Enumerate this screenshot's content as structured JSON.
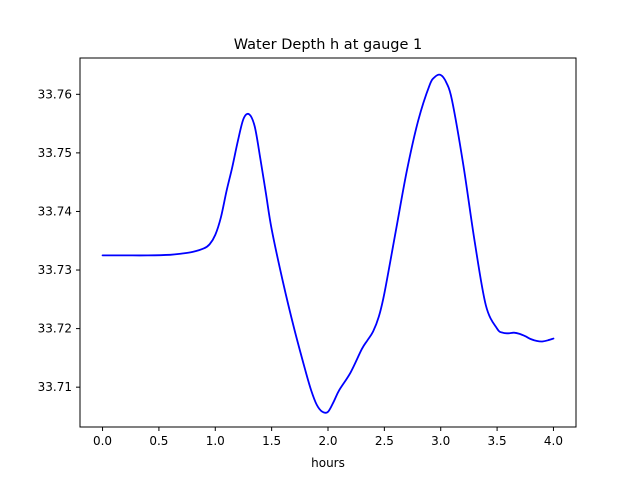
{
  "chart_data": {
    "type": "line",
    "title": "Water Depth h at gauge 1",
    "xlabel": "hours",
    "ylabel": "",
    "xlim": [
      -0.2,
      4.2
    ],
    "ylim": [
      33.7032,
      33.7662
    ],
    "xticks": [
      0.0,
      0.5,
      1.0,
      1.5,
      2.0,
      2.5,
      3.0,
      3.5,
      4.0
    ],
    "xtick_labels": [
      "0.0",
      "0.5",
      "1.0",
      "1.5",
      "2.0",
      "2.5",
      "3.0",
      "3.5",
      "4.0"
    ],
    "yticks": [
      33.71,
      33.72,
      33.73,
      33.74,
      33.75,
      33.76
    ],
    "ytick_labels": [
      "33.71",
      "33.72",
      "33.73",
      "33.74",
      "33.75",
      "33.76"
    ],
    "grid": false,
    "series": [
      {
        "color": "#0000ff",
        "x": [
          0.0,
          0.2,
          0.4,
          0.6,
          0.7,
          0.8,
          0.9,
          0.95,
          1.0,
          1.05,
          1.1,
          1.15,
          1.2,
          1.25,
          1.3,
          1.35,
          1.4,
          1.45,
          1.5,
          1.6,
          1.7,
          1.8,
          1.85,
          1.9,
          1.95,
          2.0,
          2.05,
          2.1,
          2.2,
          2.3,
          2.35,
          2.4,
          2.45,
          2.5,
          2.6,
          2.7,
          2.8,
          2.9,
          2.95,
          3.0,
          3.05,
          3.1,
          3.2,
          3.3,
          3.4,
          3.5,
          3.55,
          3.6,
          3.65,
          3.7,
          3.75,
          3.8,
          3.85,
          3.9,
          3.95,
          4.0
        ],
        "y": [
          33.7325,
          33.7325,
          33.7325,
          33.7326,
          33.7328,
          33.7331,
          33.7337,
          33.7344,
          33.736,
          33.739,
          33.7435,
          33.7475,
          33.752,
          33.7558,
          33.7566,
          33.7545,
          33.749,
          33.743,
          33.737,
          33.728,
          33.72,
          33.7128,
          33.7095,
          33.707,
          33.7058,
          33.7058,
          33.7075,
          33.7095,
          33.7125,
          33.7165,
          33.718,
          33.7195,
          33.722,
          33.726,
          33.7365,
          33.747,
          33.7555,
          33.7615,
          33.763,
          33.7633,
          33.762,
          33.759,
          33.748,
          33.735,
          33.724,
          33.72,
          33.7193,
          33.7192,
          33.7193,
          33.7191,
          33.7187,
          33.7182,
          33.7179,
          33.7178,
          33.718,
          33.7183
        ]
      }
    ]
  }
}
